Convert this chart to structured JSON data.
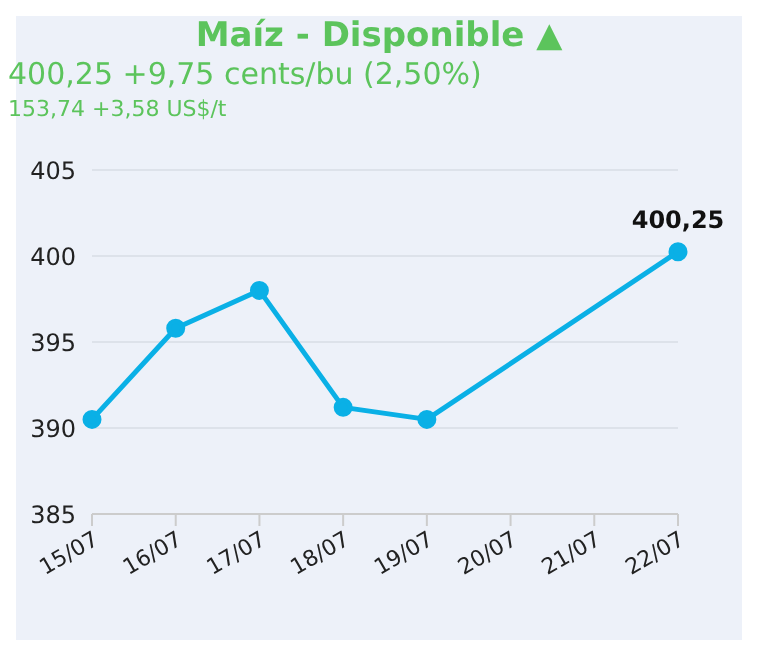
{
  "chart_data": {
    "type": "line",
    "title": "Maíz - Disponible ▲",
    "subtitle": "400,25 +9,75 cents/bu (2,50%)",
    "annotations": [
      "153,74 +3,58 US$/t"
    ],
    "categories": [
      "15/07",
      "16/07",
      "17/07",
      "18/07",
      "19/07",
      "20/07",
      "21/07",
      "22/07"
    ],
    "series": [
      {
        "color": "#0ab0e6",
        "values": [
          390.5,
          395.8,
          398,
          391.2,
          390.5,
          null,
          null,
          400.25
        ],
        "value_labels": [
          null,
          null,
          null,
          null,
          null,
          null,
          null,
          "400,25"
        ]
      }
    ],
    "ylim": [
      385,
      405
    ],
    "yticks": [
      385,
      390,
      395,
      400,
      405
    ],
    "grid": "y",
    "marker": "circle",
    "line_style": "solid",
    "legend": false
  }
}
